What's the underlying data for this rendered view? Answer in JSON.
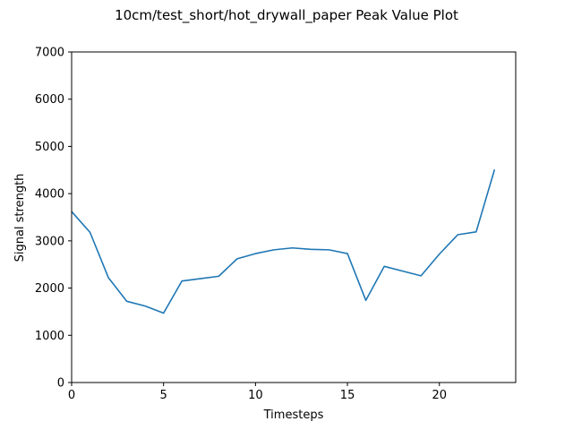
{
  "chart_data": {
    "type": "line",
    "title": "10cm/test_short/hot_drywall_paper Peak Value Plot",
    "xlabel": "Timesteps",
    "ylabel": "Signal strength",
    "xlim": [
      0,
      24.15
    ],
    "ylim": [
      0,
      7000
    ],
    "xticks": [
      0,
      5,
      10,
      15,
      20
    ],
    "yticks": [
      0,
      1000,
      2000,
      3000,
      4000,
      5000,
      6000,
      7000
    ],
    "grid": false,
    "legend": "none",
    "series": [
      {
        "color": "#1f77b4",
        "x": [
          0,
          1,
          2,
          3,
          4,
          5,
          6,
          7,
          8,
          9,
          10,
          11,
          12,
          13,
          14,
          15,
          16,
          17,
          18,
          19,
          20,
          21,
          22,
          23
        ],
        "y": [
          3620,
          3180,
          2220,
          1720,
          1620,
          1470,
          2150,
          2200,
          2250,
          2620,
          2730,
          2810,
          2850,
          2820,
          2810,
          2730,
          1740,
          2460,
          2360,
          2260,
          2720,
          3130,
          3190,
          4510
        ]
      }
    ]
  }
}
